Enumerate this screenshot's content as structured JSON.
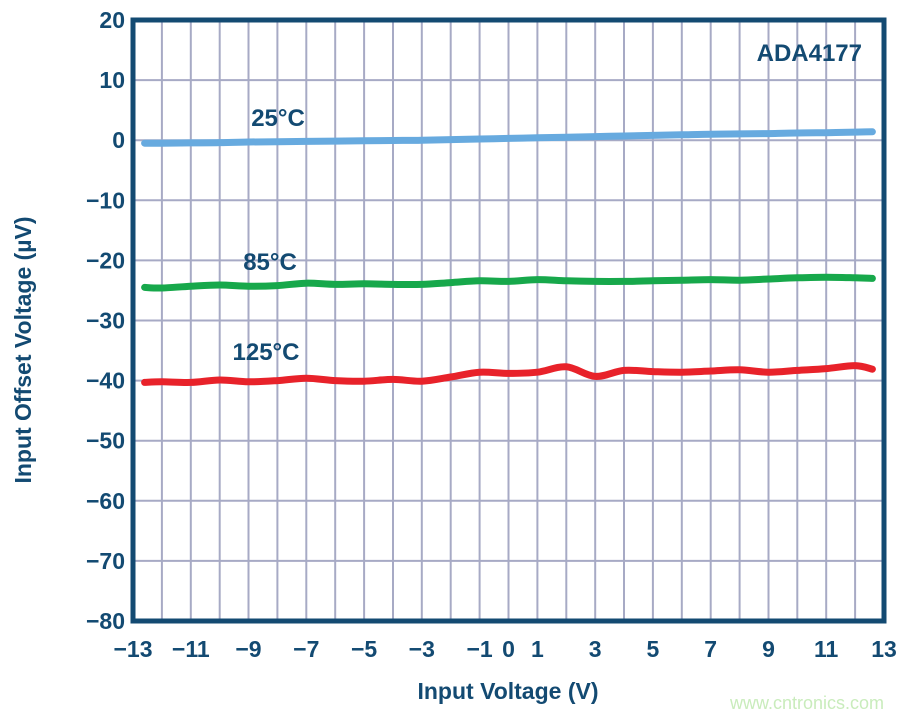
{
  "page": {
    "watermark": "www.cntronics.com"
  },
  "colors": {
    "navy": "#134a72",
    "grid": "#a7aac5",
    "watermark": "#c9ecbc",
    "background": "#ffffff",
    "series_25c": "#67aadf",
    "series_85c": "#17a84b",
    "series_125c": "#e8222a"
  },
  "chart_data": {
    "type": "line",
    "title": "ADA4177",
    "xlabel": "Input Voltage (V)",
    "ylabel": "Input Offset Voltage (µV)",
    "xlim": [
      -13,
      13
    ],
    "ylim": [
      -80,
      20
    ],
    "grid": {
      "on": true,
      "x_step": 1,
      "y_step": 10
    },
    "legend_position": "inline-labels",
    "xticks": {
      "values": [
        -13,
        -11,
        -9,
        -7,
        -5,
        -3,
        -1,
        0,
        1,
        3,
        5,
        7,
        9,
        11,
        13
      ],
      "labels": [
        "−13",
        "−11",
        "−9",
        "−7",
        "−5",
        "−3",
        "−1",
        "0",
        "1",
        "3",
        "5",
        "7",
        "9",
        "11",
        "13"
      ]
    },
    "yticks": {
      "values": [
        20,
        10,
        0,
        -10,
        -20,
        -30,
        -40,
        -50,
        -60,
        -70,
        -80
      ],
      "labels": [
        "20",
        "10",
        "0",
        "−10",
        "−20",
        "−30",
        "−40",
        "−50",
        "−60",
        "−70",
        "−80"
      ]
    },
    "x": [
      -12.6,
      -12,
      -11,
      -10,
      -9,
      -8,
      -7,
      -6,
      -5,
      -4,
      -3,
      -2,
      -1,
      0,
      1,
      2,
      3,
      4,
      5,
      6,
      7,
      8,
      9,
      10,
      11,
      12,
      12.6
    ],
    "series": [
      {
        "name": "25°C",
        "color": "#67aadf",
        "values": [
          -0.5,
          -0.5,
          -0.45,
          -0.4,
          -0.3,
          -0.25,
          -0.2,
          -0.15,
          -0.1,
          -0.05,
          0,
          0.1,
          0.2,
          0.3,
          0.4,
          0.5,
          0.6,
          0.7,
          0.8,
          0.9,
          1.0,
          1.05,
          1.1,
          1.2,
          1.25,
          1.35,
          1.4
        ]
      },
      {
        "name": "85°C",
        "color": "#17a84b",
        "values": [
          -24.5,
          -24.6,
          -24.3,
          -24.1,
          -24.3,
          -24.2,
          -23.8,
          -24.0,
          -23.9,
          -24.0,
          -24.0,
          -23.7,
          -23.4,
          -23.5,
          -23.2,
          -23.4,
          -23.5,
          -23.5,
          -23.4,
          -23.3,
          -23.2,
          -23.3,
          -23.1,
          -22.9,
          -22.8,
          -22.9,
          -23.0
        ]
      },
      {
        "name": "125°C",
        "color": "#e8222a",
        "values": [
          -40.3,
          -40.2,
          -40.3,
          -39.9,
          -40.2,
          -40.0,
          -39.6,
          -40.0,
          -40.1,
          -39.8,
          -40.1,
          -39.4,
          -38.6,
          -38.8,
          -38.6,
          -37.7,
          -39.3,
          -38.3,
          -38.5,
          -38.6,
          -38.4,
          -38.2,
          -38.6,
          -38.3,
          -38.0,
          -37.5,
          -38.1
        ]
      }
    ]
  }
}
